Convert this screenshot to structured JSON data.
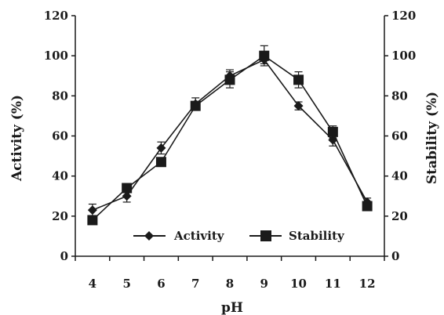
{
  "chart_data": {
    "type": "line",
    "title": "",
    "xlabel": "pH",
    "ylabel_left": "Activity (%)",
    "ylabel_right": "Stability (%)",
    "x": [
      4,
      5,
      6,
      7,
      8,
      9,
      10,
      11,
      12
    ],
    "ylim": [
      0,
      120
    ],
    "yticks": [
      0,
      20,
      40,
      60,
      80,
      100,
      120
    ],
    "legend_position": "bottom-center",
    "grid": false,
    "series": [
      {
        "name": "Activity",
        "marker": "diamond",
        "color": "#1a1a1a",
        "values": [
          23,
          30,
          54,
          76,
          90,
          98,
          75,
          58,
          27
        ],
        "errors": [
          3,
          3,
          3,
          3,
          3,
          2,
          2,
          3,
          2
        ]
      },
      {
        "name": "Stability",
        "marker": "square",
        "color": "#1a1a1a",
        "values": [
          18,
          34,
          47,
          75,
          88,
          100,
          88,
          62,
          25
        ],
        "errors": [
          1,
          2,
          2,
          2,
          4,
          5,
          4,
          3,
          2
        ]
      }
    ]
  }
}
